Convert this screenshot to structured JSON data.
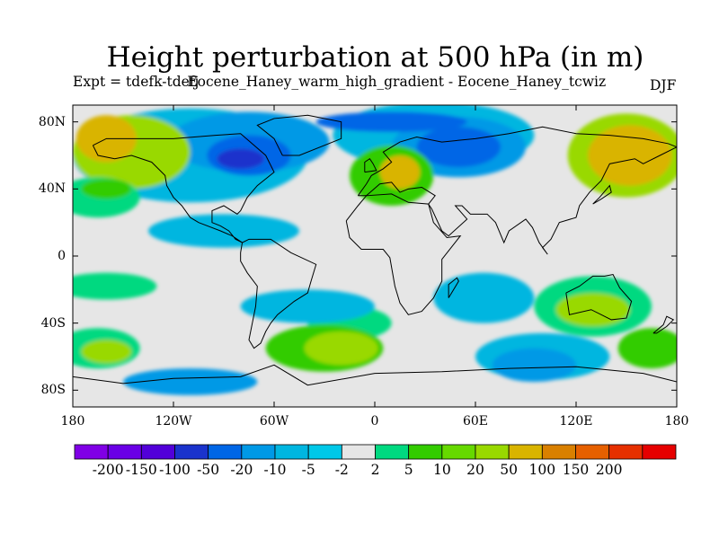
{
  "title": "Height perturbation at 500 hPa (in m)",
  "subtitle": "Expt = tdefk-tdefj",
  "subtitle_overlap": "Eocene_Haney_warm_high_gradient - Eocene_Haney_tcwiz",
  "season": "DJF",
  "map": {
    "projection": "cylindrical-equidistant",
    "lon_range": [
      -180,
      180
    ],
    "lat_range": [
      -90,
      90
    ],
    "lat_labels": [
      {
        "lat": 80,
        "text": "80N"
      },
      {
        "lat": 40,
        "text": "40N"
      },
      {
        "lat": 0,
        "text": "0"
      },
      {
        "lat": -40,
        "text": "40S"
      },
      {
        "lat": -80,
        "text": "80S"
      }
    ],
    "lon_labels": [
      {
        "lon": -180,
        "text": "180"
      },
      {
        "lon": -120,
        "text": "120W"
      },
      {
        "lon": -60,
        "text": "60W"
      },
      {
        "lon": 0,
        "text": "0"
      },
      {
        "lon": 60,
        "text": "60E"
      },
      {
        "lon": 120,
        "text": "120E"
      },
      {
        "lon": 180,
        "text": "180"
      }
    ],
    "background_color": "#e6e6e6",
    "regions": [
      {
        "level": -5,
        "color": "#00b6e0",
        "lon": -110,
        "lat": 60,
        "rx": 70,
        "ry": 28
      },
      {
        "level": -5,
        "color": "#00b6e0",
        "lon": 35,
        "lat": 72,
        "rx": 60,
        "ry": 20
      },
      {
        "level": -10,
        "color": "#0099e6",
        "lon": -75,
        "lat": 68,
        "rx": 48,
        "ry": 18
      },
      {
        "level": -10,
        "color": "#0099e6",
        "lon": 50,
        "lat": 65,
        "rx": 40,
        "ry": 18
      },
      {
        "level": -20,
        "color": "#0066e6",
        "lon": -75,
        "lat": 60,
        "rx": 25,
        "ry": 12
      },
      {
        "level": -20,
        "color": "#0066e6",
        "lon": 50,
        "lat": 65,
        "rx": 25,
        "ry": 12
      },
      {
        "level": -50,
        "color": "#1a33cc",
        "lon": -80,
        "lat": 58,
        "rx": 14,
        "ry": 6
      },
      {
        "level": -20,
        "color": "#0066e6",
        "lon": 10,
        "lat": 80,
        "rx": 45,
        "ry": 6
      },
      {
        "level": 20,
        "color": "#99d900",
        "lon": 150,
        "lat": 60,
        "rx": 35,
        "ry": 25
      },
      {
        "level": 50,
        "color": "#d9b400",
        "lon": 152,
        "lat": 60,
        "rx": 25,
        "ry": 18
      },
      {
        "level": 20,
        "color": "#99d900",
        "lon": -145,
        "lat": 62,
        "rx": 35,
        "ry": 22
      },
      {
        "level": 50,
        "color": "#d9b400",
        "lon": -160,
        "lat": 70,
        "rx": 18,
        "ry": 14
      },
      {
        "level": 10,
        "color": "#33cc00",
        "lon": 10,
        "lat": 48,
        "rx": 25,
        "ry": 18
      },
      {
        "level": 50,
        "color": "#d9b400",
        "lon": 15,
        "lat": 50,
        "rx": 12,
        "ry": 10
      },
      {
        "level": 5,
        "color": "#00d980",
        "lon": -165,
        "lat": 35,
        "rx": 25,
        "ry": 12
      },
      {
        "level": 10,
        "color": "#33cc00",
        "lon": -160,
        "lat": 40,
        "rx": 15,
        "ry": 6
      },
      {
        "level": 5,
        "color": "#00d980",
        "lon": -15,
        "lat": -40,
        "rx": 25,
        "ry": 10
      },
      {
        "level": -5,
        "color": "#00b6e0",
        "lon": -40,
        "lat": -30,
        "rx": 40,
        "ry": 10
      },
      {
        "level": -5,
        "color": "#00b6e0",
        "lon": 65,
        "lat": -25,
        "rx": 30,
        "ry": 15
      },
      {
        "level": 5,
        "color": "#00d980",
        "lon": -160,
        "lat": -18,
        "rx": 30,
        "ry": 8
      },
      {
        "level": 10,
        "color": "#33cc00",
        "lon": -30,
        "lat": -55,
        "rx": 35,
        "ry": 14
      },
      {
        "level": 20,
        "color": "#99d900",
        "lon": -20,
        "lat": -55,
        "rx": 22,
        "ry": 10
      },
      {
        "level": 5,
        "color": "#00d980",
        "lon": 130,
        "lat": -30,
        "rx": 35,
        "ry": 18
      },
      {
        "level": 20,
        "color": "#99d900",
        "lon": 130,
        "lat": -32,
        "rx": 22,
        "ry": 10
      },
      {
        "level": -5,
        "color": "#00b6e0",
        "lon": 100,
        "lat": -60,
        "rx": 40,
        "ry": 14
      },
      {
        "level": -10,
        "color": "#0099e6",
        "lon": 95,
        "lat": -65,
        "rx": 25,
        "ry": 10
      },
      {
        "level": 5,
        "color": "#00d980",
        "lon": -165,
        "lat": -55,
        "rx": 25,
        "ry": 12
      },
      {
        "level": 20,
        "color": "#99d900",
        "lon": -160,
        "lat": -57,
        "rx": 15,
        "ry": 7
      },
      {
        "level": 10,
        "color": "#33cc00",
        "lon": 165,
        "lat": -55,
        "rx": 20,
        "ry": 12
      },
      {
        "level": -10,
        "color": "#0099e6",
        "lon": -110,
        "lat": -75,
        "rx": 40,
        "ry": 8
      },
      {
        "level": -5,
        "color": "#00b6e0",
        "lon": -90,
        "lat": 15,
        "rx": 45,
        "ry": 10
      }
    ],
    "coastlines": [
      [
        [
          -168,
          66
        ],
        [
          -160,
          70
        ],
        [
          -140,
          70
        ],
        [
          -120,
          70
        ],
        [
          -95,
          72
        ],
        [
          -80,
          73
        ],
        [
          -65,
          60
        ],
        [
          -60,
          50
        ],
        [
          -70,
          42
        ],
        [
          -76,
          35
        ],
        [
          -80,
          27
        ],
        [
          -82,
          25
        ],
        [
          -90,
          30
        ],
        [
          -97,
          27
        ],
        [
          -97,
          20
        ],
        [
          -92,
          18
        ],
        [
          -87,
          15
        ],
        [
          -83,
          10
        ],
        [
          -79,
          8
        ],
        [
          -85,
          12
        ],
        [
          -92,
          15
        ],
        [
          -105,
          20
        ],
        [
          -110,
          23
        ],
        [
          -115,
          30
        ],
        [
          -120,
          35
        ],
        [
          -124,
          42
        ],
        [
          -125,
          48
        ],
        [
          -133,
          56
        ],
        [
          -145,
          60
        ],
        [
          -155,
          58
        ],
        [
          -165,
          60
        ],
        [
          -168,
          66
        ]
      ],
      [
        [
          -79,
          8
        ],
        [
          -75,
          10
        ],
        [
          -62,
          10
        ],
        [
          -50,
          2
        ],
        [
          -35,
          -5
        ],
        [
          -38,
          -15
        ],
        [
          -40,
          -22
        ],
        [
          -48,
          -27
        ],
        [
          -58,
          -35
        ],
        [
          -62,
          -40
        ],
        [
          -65,
          -45
        ],
        [
          -68,
          -52
        ],
        [
          -72,
          -55
        ],
        [
          -75,
          -50
        ],
        [
          -73,
          -40
        ],
        [
          -71,
          -30
        ],
        [
          -70,
          -18
        ],
        [
          -76,
          -10
        ],
        [
          -80,
          -3
        ],
        [
          -80,
          2
        ],
        [
          -79,
          8
        ]
      ],
      [
        [
          -55,
          60
        ],
        [
          -45,
          60
        ],
        [
          -20,
          70
        ],
        [
          -20,
          80
        ],
        [
          -40,
          84
        ],
        [
          -60,
          82
        ],
        [
          -70,
          78
        ],
        [
          -60,
          70
        ],
        [
          -55,
          60
        ]
      ],
      [
        [
          -10,
          36
        ],
        [
          -5,
          43
        ],
        [
          -2,
          48
        ],
        [
          5,
          52
        ],
        [
          10,
          56
        ],
        [
          5,
          62
        ],
        [
          15,
          68
        ],
        [
          25,
          71
        ],
        [
          40,
          68
        ],
        [
          60,
          70
        ],
        [
          80,
          73
        ],
        [
          100,
          77
        ],
        [
          120,
          73
        ],
        [
          140,
          72
        ],
        [
          160,
          70
        ],
        [
          175,
          67
        ],
        [
          180,
          65
        ],
        [
          170,
          60
        ],
        [
          160,
          55
        ],
        [
          155,
          58
        ],
        [
          140,
          55
        ],
        [
          135,
          45
        ],
        [
          128,
          38
        ],
        [
          122,
          30
        ],
        [
          120,
          23
        ],
        [
          110,
          20
        ],
        [
          105,
          10
        ],
        [
          100,
          5
        ],
        [
          103,
          1
        ],
        [
          98,
          8
        ],
        [
          94,
          17
        ],
        [
          90,
          22
        ],
        [
          80,
          15
        ],
        [
          77,
          8
        ],
        [
          72,
          20
        ],
        [
          67,
          25
        ],
        [
          57,
          25
        ],
        [
          52,
          30
        ],
        [
          48,
          30
        ],
        [
          55,
          22
        ],
        [
          44,
          12
        ],
        [
          40,
          15
        ],
        [
          34,
          28
        ],
        [
          32,
          31
        ],
        [
          36,
          36
        ],
        [
          28,
          41
        ],
        [
          20,
          40
        ],
        [
          15,
          38
        ],
        [
          10,
          44
        ],
        [
          3,
          43
        ],
        [
          -5,
          36
        ],
        [
          -10,
          36
        ]
      ],
      [
        [
          -17,
          21
        ],
        [
          -10,
          30
        ],
        [
          -5,
          36
        ],
        [
          10,
          37
        ],
        [
          20,
          32
        ],
        [
          32,
          31
        ],
        [
          35,
          20
        ],
        [
          43,
          11
        ],
        [
          51,
          12
        ],
        [
          40,
          -2
        ],
        [
          40,
          -15
        ],
        [
          35,
          -25
        ],
        [
          28,
          -33
        ],
        [
          20,
          -35
        ],
        [
          15,
          -28
        ],
        [
          12,
          -18
        ],
        [
          9,
          -1
        ],
        [
          5,
          4
        ],
        [
          -8,
          4
        ],
        [
          -15,
          11
        ],
        [
          -17,
          21
        ]
      ],
      [
        [
          114,
          -22
        ],
        [
          122,
          -18
        ],
        [
          130,
          -12
        ],
        [
          137,
          -12
        ],
        [
          142,
          -11
        ],
        [
          146,
          -19
        ],
        [
          153,
          -27
        ],
        [
          150,
          -37
        ],
        [
          141,
          -38
        ],
        [
          135,
          -35
        ],
        [
          129,
          -32
        ],
        [
          116,
          -35
        ],
        [
          114,
          -22
        ]
      ],
      [
        [
          -180,
          -72
        ],
        [
          -150,
          -76
        ],
        [
          -120,
          -73
        ],
        [
          -80,
          -72
        ],
        [
          -60,
          -65
        ],
        [
          -40,
          -77
        ],
        [
          0,
          -70
        ],
        [
          40,
          -69
        ],
        [
          80,
          -67
        ],
        [
          120,
          -66
        ],
        [
          160,
          -70
        ],
        [
          180,
          -75
        ]
      ],
      [
        [
          44,
          -25
        ],
        [
          50,
          -15
        ],
        [
          49,
          -13
        ],
        [
          44,
          -17
        ],
        [
          44,
          -25
        ]
      ],
      [
        [
          -6,
          50
        ],
        [
          1,
          51
        ],
        [
          -1,
          55
        ],
        [
          -3,
          58
        ],
        [
          -6,
          56
        ],
        [
          -6,
          50
        ]
      ],
      [
        [
          130,
          31
        ],
        [
          135,
          34
        ],
        [
          141,
          38
        ],
        [
          140,
          42
        ],
        [
          134,
          35
        ],
        [
          130,
          31
        ]
      ],
      [
        [
          166,
          -46
        ],
        [
          172,
          -41
        ],
        [
          174,
          -36
        ],
        [
          178,
          -38
        ],
        [
          174,
          -42
        ],
        [
          168,
          -46
        ],
        [
          166,
          -46
        ]
      ]
    ]
  },
  "colorbar": {
    "colors": [
      "#8000e6",
      "#6a00e6",
      "#5200d9",
      "#1a33cc",
      "#0066e6",
      "#0099e6",
      "#00b6e0",
      "#00c8e8",
      "#e6e6e6",
      "#00d980",
      "#33cc00",
      "#66d900",
      "#99d900",
      "#d9b400",
      "#d98000",
      "#e66000",
      "#e63000",
      "#e60000"
    ],
    "labels": [
      "-200",
      "-150",
      "-100",
      "-50",
      "-20",
      "-10",
      "-5",
      "-2",
      "2",
      "5",
      "10",
      "20",
      "50",
      "100",
      "150",
      "200"
    ]
  }
}
